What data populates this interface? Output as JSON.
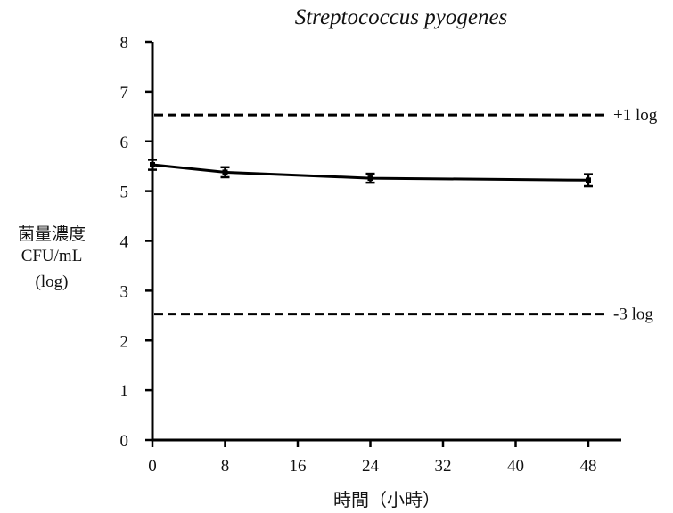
{
  "chart_data": {
    "type": "line",
    "title": "Streptococcus pyogenes",
    "xlabel": "時間（小時）",
    "ylabel": [
      "菌量濃度",
      "CFU/mL",
      "(log)"
    ],
    "xlim": [
      0,
      51
    ],
    "ylim": [
      0,
      8
    ],
    "xticks": [
      0,
      8,
      16,
      24,
      32,
      40,
      48
    ],
    "yticks": [
      0,
      1,
      2,
      3,
      4,
      5,
      6,
      7,
      8
    ],
    "grid": false,
    "series": [
      {
        "x": [
          0,
          8,
          24,
          48
        ],
        "y": [
          5.53,
          5.38,
          5.26,
          5.22
        ],
        "error": [
          0.1,
          0.1,
          0.09,
          0.12
        ],
        "color": "#000000"
      }
    ],
    "reference_lines": [
      {
        "y": 6.53,
        "label": "+1 log",
        "style": "dashed"
      },
      {
        "y": 2.53,
        "label": "-3 log",
        "style": "dashed"
      }
    ]
  }
}
